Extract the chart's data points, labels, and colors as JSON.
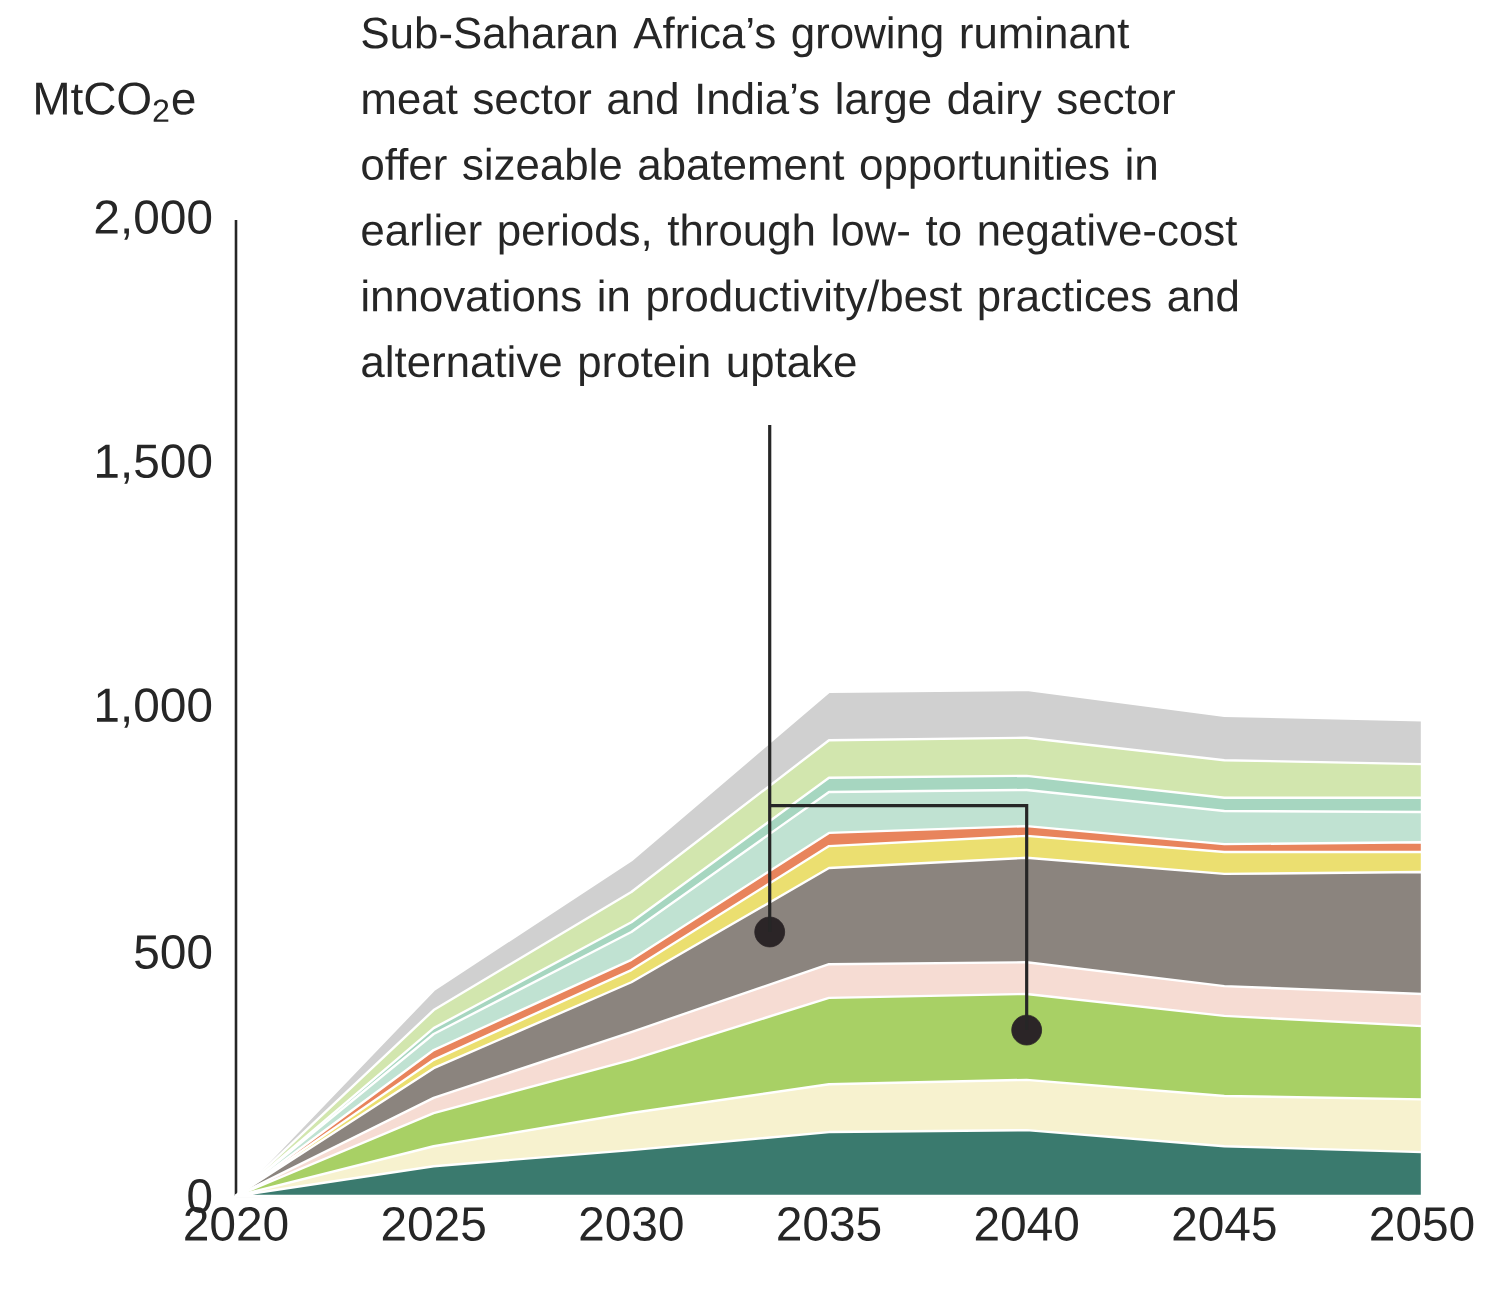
{
  "chart_data": {
    "type": "area",
    "stacked": true,
    "ylabel": "MtCO$_{2}$e",
    "x": [
      2020,
      2025,
      2030,
      2035,
      2040,
      2045,
      2050
    ],
    "xlim": [
      2020,
      2050
    ],
    "xticks": [
      2020,
      2025,
      2030,
      2035,
      2040,
      2045,
      2050
    ],
    "ylim": [
      0,
      2000
    ],
    "yticks": [
      {
        "value": 0,
        "label": "0"
      },
      {
        "value": 500,
        "label": "500"
      },
      {
        "value": 1000,
        "label": "1,000"
      },
      {
        "value": 1500,
        "label": "1,500"
      },
      {
        "value": 2000,
        "label": "2,000"
      }
    ],
    "series": [
      {
        "color": "#3a7a6e",
        "values": [
          0,
          61,
          94,
          131,
          135,
          102,
          90
        ]
      },
      {
        "color": "#f7f2cf",
        "values": [
          0,
          41,
          76,
          98,
          103,
          103,
          108
        ]
      },
      {
        "color": "#a8d065",
        "values": [
          0,
          68,
          109,
          177,
          176,
          164,
          150
        ]
      },
      {
        "color": "#f6dcd3",
        "values": [
          0,
          31,
          57,
          69,
          65,
          61,
          66
        ]
      },
      {
        "color": "#8b847e",
        "values": [
          0,
          61,
          102,
          197,
          214,
          230,
          250
        ]
      },
      {
        "color": "#ebdf70",
        "values": [
          0,
          17,
          25,
          45,
          45,
          45,
          41
        ]
      },
      {
        "color": "#e8845c",
        "values": [
          0,
          20,
          21,
          27,
          20,
          16,
          20
        ]
      },
      {
        "color": "#c0e2d2",
        "values": [
          0,
          33,
          57,
          84,
          74,
          68,
          62
        ]
      },
      {
        "color": "#a6d6c0",
        "values": [
          0,
          12,
          20,
          29,
          29,
          27,
          29
        ]
      },
      {
        "color": "#d2e6ae",
        "values": [
          0,
          37,
          62,
          77,
          78,
          77,
          69
        ]
      },
      {
        "color": "#d0d0d0",
        "values": [
          0,
          41,
          65,
          99,
          98,
          91,
          90
        ]
      },
      {
        "type": "scatter",
        "color": "#2b2527",
        "marker": "circle",
        "x": [
          2033.5,
          2040
        ],
        "values": [
          541,
          340
        ]
      }
    ],
    "annotations": [
      "Sub-Saharan Africa’s growing ruminant meat sector and India’s large dairy sector offer sizeable abatement opportunities in earlier periods, through low- to negative-cost innovations in productivity/best practices and alternative protein uptake"
    ]
  }
}
